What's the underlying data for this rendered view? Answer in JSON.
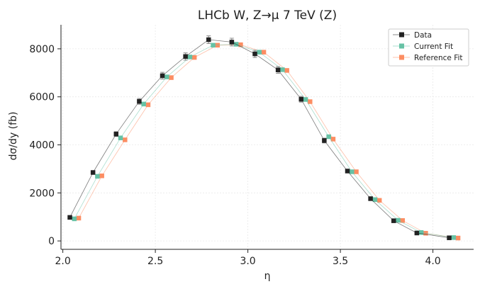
{
  "chart_data": {
    "type": "line",
    "title": "LHCb W, Z→μ 7 TeV (Z)",
    "xlabel": "η",
    "ylabel": "dσ/dy (fb)",
    "xlim": [
      1.99,
      4.22
    ],
    "ylim": [
      -350,
      9000
    ],
    "x_ticks": [
      2.0,
      2.5,
      3.0,
      3.5,
      4.0
    ],
    "x_tick_labels": [
      "2.0",
      "2.5",
      "3.0",
      "3.5",
      "4.0"
    ],
    "y_ticks": [
      0,
      2000,
      4000,
      6000,
      8000
    ],
    "y_tick_labels": [
      "0",
      "2000",
      "4000",
      "6000",
      "8000"
    ],
    "grid": true,
    "legend_position": "top-right",
    "x": [
      2.05,
      2.175,
      2.3,
      2.425,
      2.55,
      2.675,
      2.8,
      2.925,
      3.05,
      3.175,
      3.3,
      3.425,
      3.55,
      3.675,
      3.8,
      3.925,
      4.1
    ],
    "series": [
      {
        "name": "Data",
        "color": "#222222",
        "marker": "square",
        "x_offset": -0.012,
        "values": [
          980,
          2850,
          4450,
          5810,
          6880,
          7680,
          8380,
          8280,
          7790,
          7120,
          5900,
          4180,
          2910,
          1760,
          840,
          330,
          130
        ],
        "errors": [
          40,
          70,
          100,
          120,
          140,
          150,
          160,
          160,
          150,
          140,
          120,
          100,
          70,
          50,
          40,
          30,
          20
        ]
      },
      {
        "name": "Current Fit",
        "color": "#66c2a5",
        "marker": "square",
        "x_offset": 0.012,
        "values": [
          920,
          2690,
          4290,
          5700,
          6830,
          7660,
          8150,
          8190,
          7860,
          7130,
          5890,
          4340,
          2880,
          1720,
          860,
          350,
          140
        ]
      },
      {
        "name": "Reference Fit",
        "color": "#fc8d62",
        "marker": "square",
        "x_offset": 0.036,
        "values": [
          950,
          2710,
          4210,
          5670,
          6800,
          7640,
          8150,
          8170,
          7860,
          7100,
          5800,
          4240,
          2880,
          1690,
          850,
          320,
          120
        ]
      }
    ]
  }
}
